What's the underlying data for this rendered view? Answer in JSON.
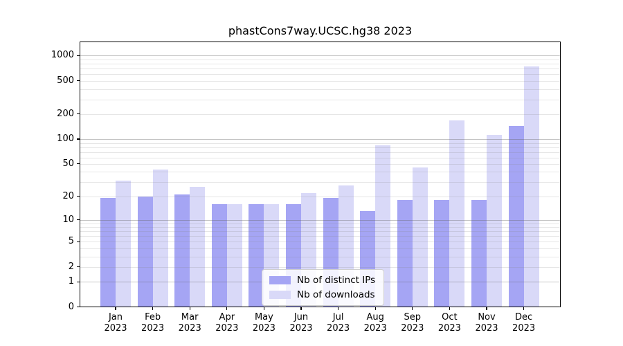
{
  "title": "phastCons7way.UCSC.hg38 2023",
  "colors": {
    "ips_bar": "#a5a5f4",
    "downloads_bar": "#d9d9f8",
    "grid_major": "#c8c8c8",
    "grid_minor": "#e4e4e4"
  },
  "legend": {
    "items": [
      {
        "label": "Nb of distinct IPs",
        "color_key": "ips_bar"
      },
      {
        "label": "Nb of downloads",
        "color_key": "downloads_bar"
      }
    ]
  },
  "y_axis": {
    "scale": "log10(value+1)",
    "ticks": [
      "1000",
      "500",
      "200",
      "100",
      "50",
      "20",
      "10",
      "5",
      "2",
      "1",
      "0"
    ],
    "tick_values": [
      1000,
      500,
      200,
      100,
      50,
      20,
      10,
      5,
      2,
      1,
      0
    ],
    "major_gridlines": [
      1,
      10,
      100,
      1000
    ],
    "minor_gridlines": [
      2,
      3,
      4,
      5,
      6,
      7,
      8,
      9,
      20,
      30,
      40,
      50,
      60,
      70,
      80,
      90,
      200,
      300,
      400,
      500,
      600,
      700,
      800,
      900
    ]
  },
  "x_axis": {
    "months": [
      "Jan",
      "Feb",
      "Mar",
      "Apr",
      "May",
      "Jun",
      "Jul",
      "Aug",
      "Sep",
      "Oct",
      "Nov",
      "Dec"
    ],
    "year": "2023"
  },
  "chart_data": {
    "type": "bar",
    "title": "phastCons7way.UCSC.hg38 2023",
    "categories": [
      "Jan 2023",
      "Feb 2023",
      "Mar 2023",
      "Apr 2023",
      "May 2023",
      "Jun 2023",
      "Jul 2023",
      "Aug 2023",
      "Sep 2023",
      "Oct 2023",
      "Nov 2023",
      "Dec 2023"
    ],
    "series": [
      {
        "name": "Nb of distinct IPs",
        "values": [
          19,
          20,
          21,
          16,
          16,
          16,
          19,
          13,
          18,
          18,
          18,
          144
        ]
      },
      {
        "name": "Nb of downloads",
        "values": [
          31,
          43,
          26,
          16,
          16,
          22,
          27,
          84,
          45,
          168,
          112,
          745
        ]
      }
    ],
    "xlabel": "",
    "ylabel": "",
    "yscale": "symlog (plotted as log10(v+1))",
    "ylim": [
      0,
      1480
    ],
    "grid": true,
    "legend_position": "lower center"
  }
}
